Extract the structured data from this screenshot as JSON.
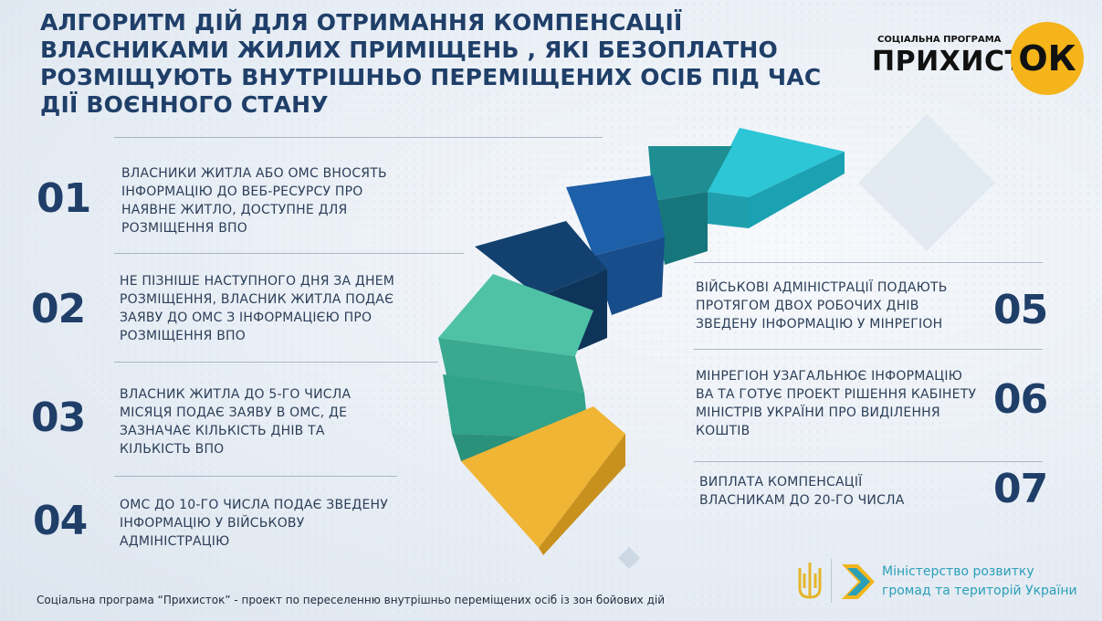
{
  "title": "Алгоритм дій для отримання компенсації власниками жилих приміщень , які безоплатно розміщують внутрішньо переміщених осіб під час дії воєнного стану",
  "logo": {
    "small": "Соціальна програма",
    "big": "ПРИХИСТ",
    "ok": "ОК"
  },
  "steps": [
    {
      "num": "01",
      "text": "Власники житла або ОМС вносять інформацію до веб-ресурсу про наявне житло, доступне для розміщення ВПО"
    },
    {
      "num": "02",
      "text": "Не пізніше наступного дня за днем розміщення, власник житла подає заяву до ОМС з інформацією про розміщення ВПО"
    },
    {
      "num": "03",
      "text": "Власник житла до 5-го числа місяця подає заяву в ОМС, де зазначає кількість днів та кількість ВПО"
    },
    {
      "num": "04",
      "text": "ОМС до 10-го числа подає зведену інформацію у військову адміністрацію"
    },
    {
      "num": "05",
      "text": "Військові адміністрації подають протягом двох робочих днів зведену інформацію у Мінрегіон"
    },
    {
      "num": "06",
      "text": "Мінрегіон узагальнює інформацію ВА та готує проект рішення Кабінету Міністрів України про виділення коштів"
    },
    {
      "num": "07",
      "text": "Виплата компенсації власникам до 20-го числа"
    }
  ],
  "footer": "Соціальна програма “Прихисток” - проект по переселенню внутрішньо переміщених осіб із зон бойових дій",
  "ministry": {
    "line1": "Міністерство розвитку",
    "line2": "громад та територій України"
  },
  "colors": {
    "title": "#1f3f69",
    "accent_ok": "#f4b41a",
    "ministry_text": "#2a9fb8"
  }
}
